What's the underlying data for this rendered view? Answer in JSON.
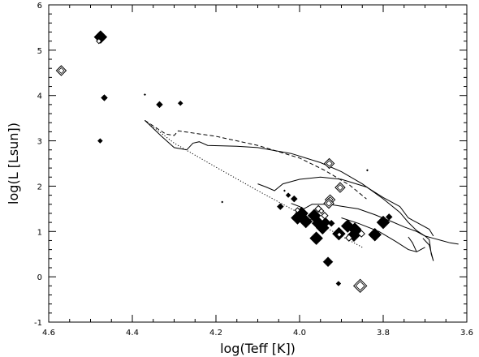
{
  "chart_data": {
    "type": "scatter",
    "xlabel": "log(Teff  [K])",
    "ylabel": "log(L  [Lsun])",
    "xlim": [
      4.6,
      3.6
    ],
    "ylim": [
      -1,
      6
    ],
    "x_ticks": [
      "4.6",
      "4.4",
      "4.2",
      "4.0",
      "3.8",
      "3.6"
    ],
    "y_ticks": [
      "-1",
      "0",
      "1",
      "2",
      "3",
      "4",
      "5",
      "6"
    ],
    "filled_points": [
      {
        "x": 4.476,
        "y": 5.29,
        "size": "large"
      },
      {
        "x": 4.467,
        "y": 3.95,
        "size": "small"
      },
      {
        "x": 4.477,
        "y": 3.0,
        "size": "tiny"
      },
      {
        "x": 4.335,
        "y": 3.8,
        "size": "small"
      },
      {
        "x": 4.285,
        "y": 3.83,
        "size": "tiny"
      },
      {
        "x": 4.185,
        "y": 1.65,
        "size": "dot"
      },
      {
        "x": 4.37,
        "y": 4.02,
        "size": "dot"
      },
      {
        "x": 4.046,
        "y": 1.55,
        "size": "small"
      },
      {
        "x": 4.036,
        "y": 1.9,
        "size": "dot"
      },
      {
        "x": 4.027,
        "y": 1.8,
        "size": "tiny"
      },
      {
        "x": 4.013,
        "y": 1.72,
        "size": "small"
      },
      {
        "x": 3.995,
        "y": 1.4,
        "size": "large"
      },
      {
        "x": 4.005,
        "y": 1.3,
        "size": "large"
      },
      {
        "x": 3.985,
        "y": 1.22,
        "size": "large"
      },
      {
        "x": 3.965,
        "y": 1.35,
        "size": "large"
      },
      {
        "x": 3.955,
        "y": 1.18,
        "size": "large"
      },
      {
        "x": 3.945,
        "y": 1.08,
        "size": "large"
      },
      {
        "x": 3.938,
        "y": 1.2,
        "size": "medium"
      },
      {
        "x": 3.924,
        "y": 1.18,
        "size": "small"
      },
      {
        "x": 3.96,
        "y": 0.85,
        "size": "large"
      },
      {
        "x": 3.906,
        "y": 0.95,
        "size": "large"
      },
      {
        "x": 3.885,
        "y": 1.12,
        "size": "large"
      },
      {
        "x": 3.87,
        "y": 0.92,
        "size": "large"
      },
      {
        "x": 3.868,
        "y": 1.05,
        "size": "large"
      },
      {
        "x": 3.862,
        "y": 1.0,
        "size": "medium"
      },
      {
        "x": 3.82,
        "y": 0.93,
        "size": "large"
      },
      {
        "x": 3.8,
        "y": 1.2,
        "size": "large"
      },
      {
        "x": 3.786,
        "y": 1.32,
        "size": "small"
      },
      {
        "x": 3.932,
        "y": 0.33,
        "size": "medium"
      },
      {
        "x": 3.907,
        "y": -0.15,
        "size": "tiny"
      },
      {
        "x": 3.838,
        "y": 2.35,
        "size": "dot"
      }
    ],
    "open_points": [
      {
        "x": 4.57,
        "y": 4.55,
        "size": "medium"
      },
      {
        "x": 4.48,
        "y": 5.2,
        "size": "tiny"
      },
      {
        "x": 3.929,
        "y": 2.5,
        "size": "medium"
      },
      {
        "x": 3.903,
        "y": 1.97,
        "size": "medium"
      },
      {
        "x": 3.927,
        "y": 1.7,
        "size": "medium"
      },
      {
        "x": 3.955,
        "y": 1.5,
        "size": "small"
      },
      {
        "x": 3.948,
        "y": 1.45,
        "size": "tiny"
      },
      {
        "x": 4.005,
        "y": 1.47,
        "size": "tiny"
      },
      {
        "x": 3.94,
        "y": 1.35,
        "size": "small"
      },
      {
        "x": 3.93,
        "y": 1.62,
        "size": "medium"
      },
      {
        "x": 3.905,
        "y": 0.93,
        "size": "tiny"
      },
      {
        "x": 3.882,
        "y": 0.86,
        "size": "small"
      },
      {
        "x": 3.852,
        "y": 0.95,
        "size": "small"
      },
      {
        "x": 3.855,
        "y": -0.2,
        "size": "large"
      }
    ],
    "lines": [
      {
        "style": "dotted",
        "points": [
          [
            4.37,
            3.45
          ],
          [
            4.3,
            2.95
          ],
          [
            4.2,
            2.42
          ],
          [
            4.1,
            1.9
          ],
          [
            4.0,
            1.4
          ],
          [
            3.92,
            1.0
          ],
          [
            3.85,
            0.65
          ]
        ]
      },
      {
        "style": "dashed",
        "points": [
          [
            4.37,
            3.45
          ],
          [
            4.32,
            3.15
          ],
          [
            4.3,
            3.12
          ],
          [
            4.29,
            3.22
          ],
          [
            4.2,
            3.1
          ],
          [
            4.1,
            2.9
          ],
          [
            4.0,
            2.62
          ],
          [
            3.94,
            2.35
          ],
          [
            3.88,
            2.02
          ],
          [
            3.84,
            1.72
          ]
        ]
      },
      {
        "style": "solid",
        "points": [
          [
            4.37,
            3.45
          ],
          [
            4.33,
            3.1
          ],
          [
            4.3,
            2.85
          ],
          [
            4.27,
            2.8
          ],
          [
            4.255,
            2.95
          ],
          [
            4.24,
            2.98
          ],
          [
            4.22,
            2.9
          ],
          [
            4.15,
            2.88
          ],
          [
            4.1,
            2.85
          ],
          [
            4.02,
            2.72
          ],
          [
            3.95,
            2.52
          ],
          [
            3.9,
            2.32
          ],
          [
            3.85,
            2.05
          ],
          [
            3.8,
            1.72
          ],
          [
            3.76,
            1.42
          ],
          [
            3.74,
            1.2
          ],
          [
            3.72,
            1.02
          ],
          [
            3.7,
            0.9
          ],
          [
            3.68,
            0.85
          ],
          [
            3.66,
            0.8
          ],
          [
            3.64,
            0.75
          ],
          [
            3.62,
            0.72
          ]
        ]
      },
      {
        "style": "solid",
        "points": [
          [
            4.1,
            2.05
          ],
          [
            4.08,
            1.98
          ],
          [
            4.06,
            1.9
          ],
          [
            4.04,
            2.05
          ],
          [
            4.0,
            2.15
          ],
          [
            3.95,
            2.2
          ],
          [
            3.9,
            2.15
          ],
          [
            3.84,
            1.98
          ],
          [
            3.8,
            1.75
          ],
          [
            3.76,
            1.55
          ],
          [
            3.74,
            1.3
          ],
          [
            3.72,
            1.2
          ],
          [
            3.69,
            1.05
          ],
          [
            3.68,
            0.9
          ]
        ]
      },
      {
        "style": "solid",
        "points": [
          [
            4.02,
            1.62
          ],
          [
            4.0,
            1.55
          ],
          [
            3.99,
            1.5
          ],
          [
            3.97,
            1.6
          ],
          [
            3.93,
            1.6
          ],
          [
            3.86,
            1.5
          ],
          [
            3.82,
            1.37
          ],
          [
            3.78,
            1.22
          ],
          [
            3.75,
            1.1
          ],
          [
            3.72,
            1.0
          ],
          [
            3.7,
            0.9
          ],
          [
            3.69,
            0.82
          ],
          [
            3.685,
            0.5
          ],
          [
            3.68,
            0.35
          ],
          [
            3.69,
            0.7
          ],
          [
            3.7,
            0.8
          ],
          [
            3.705,
            0.85
          ]
        ]
      },
      {
        "style": "solid",
        "points": [
          [
            3.9,
            1.3
          ],
          [
            3.86,
            1.18
          ],
          [
            3.81,
            1.0
          ],
          [
            3.77,
            0.78
          ],
          [
            3.74,
            0.6
          ],
          [
            3.72,
            0.55
          ],
          [
            3.71,
            0.6
          ],
          [
            3.7,
            0.65
          ]
        ]
      },
      {
        "style": "solid",
        "points": [
          [
            3.74,
            0.88
          ],
          [
            3.73,
            0.75
          ],
          [
            3.72,
            0.55
          ]
        ]
      }
    ],
    "grid": false
  }
}
